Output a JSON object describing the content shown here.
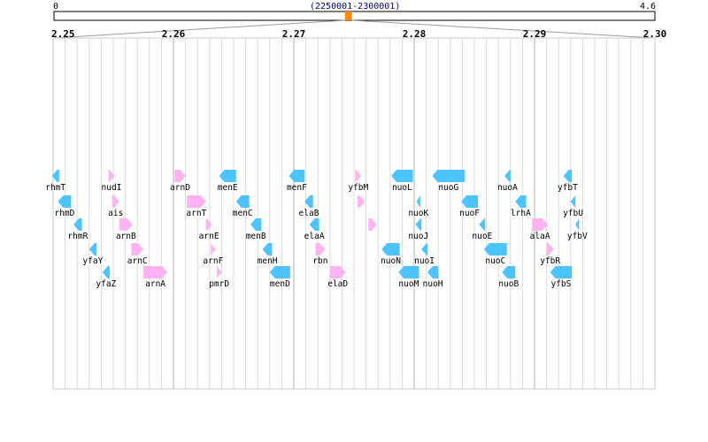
{
  "overview": {
    "start_label": "0",
    "end_label": "4.6",
    "range_label": "(2250001-2300001)",
    "marker_fraction": 0.49,
    "accent_color": "#ff8c00",
    "range_color": "#000099"
  },
  "detail_ticks": [
    {
      "label": "2.25",
      "value": 2.25
    },
    {
      "label": "2.26",
      "value": 2.26
    },
    {
      "label": "2.27",
      "value": 2.27
    },
    {
      "label": "2.28",
      "value": 2.28
    },
    {
      "label": "2.29",
      "value": 2.29
    },
    {
      "label": "2.30",
      "value": 2.3
    }
  ],
  "colors": {
    "forward_strand": "#ffb3f2",
    "reverse_strand": "#4dc3ff",
    "grid_major": "#b0b0b0",
    "grid_minor": "#dcdcdc"
  },
  "genes": [
    {
      "name": "rhmT",
      "start": 2.2499,
      "end": 2.2505,
      "strand": "-",
      "row": 0
    },
    {
      "name": "rhmD",
      "start": 2.2504,
      "end": 2.2515,
      "strand": "-",
      "row": 1
    },
    {
      "name": "rhmR",
      "start": 2.2517,
      "end": 2.2524,
      "strand": "-",
      "row": 2
    },
    {
      "name": "yfaY",
      "start": 2.253,
      "end": 2.2536,
      "strand": "-",
      "row": 3
    },
    {
      "name": "yfaZ",
      "start": 2.2541,
      "end": 2.2547,
      "strand": "-",
      "row": 4
    },
    {
      "name": "nudI",
      "start": 2.2546,
      "end": 2.2551,
      "strand": "+",
      "row": 0
    },
    {
      "name": "ais",
      "start": 2.2549,
      "end": 2.2555,
      "strand": "+",
      "row": 1
    },
    {
      "name": "arnB",
      "start": 2.2555,
      "end": 2.2566,
      "strand": "+",
      "row": 2
    },
    {
      "name": "arnC",
      "start": 2.2565,
      "end": 2.2575,
      "strand": "+",
      "row": 3
    },
    {
      "name": "arnA",
      "start": 2.2575,
      "end": 2.2595,
      "strand": "+",
      "row": 4
    },
    {
      "name": "arnD",
      "start": 2.2601,
      "end": 2.261,
      "strand": "+",
      "row": 0
    },
    {
      "name": "arnT",
      "start": 2.2611,
      "end": 2.2627,
      "strand": "+",
      "row": 1
    },
    {
      "name": "arnE",
      "start": 2.2627,
      "end": 2.2632,
      "strand": "+",
      "row": 2
    },
    {
      "name": "arnF",
      "start": 2.2631,
      "end": 2.2635,
      "strand": "+",
      "row": 3
    },
    {
      "name": "pmrD",
      "start": 2.2636,
      "end": 2.264,
      "strand": "+",
      "row": 4
    },
    {
      "name": "menE",
      "start": 2.2638,
      "end": 2.2652,
      "strand": "-",
      "row": 0
    },
    {
      "name": "menC",
      "start": 2.2652,
      "end": 2.2663,
      "strand": "-",
      "row": 1
    },
    {
      "name": "menB",
      "start": 2.2664,
      "end": 2.2673,
      "strand": "-",
      "row": 2
    },
    {
      "name": "menH",
      "start": 2.2674,
      "end": 2.2682,
      "strand": "-",
      "row": 3
    },
    {
      "name": "menD",
      "start": 2.268,
      "end": 2.2697,
      "strand": "-",
      "row": 4
    },
    {
      "name": "menF",
      "start": 2.2696,
      "end": 2.2709,
      "strand": "-",
      "row": 0
    },
    {
      "name": "elaB",
      "start": 2.2709,
      "end": 2.2716,
      "strand": "-",
      "row": 1
    },
    {
      "name": "elaA",
      "start": 2.2713,
      "end": 2.2721,
      "strand": "-",
      "row": 2
    },
    {
      "name": "rbn",
      "start": 2.2718,
      "end": 2.2726,
      "strand": "+",
      "row": 3
    },
    {
      "name": "elaD",
      "start": 2.273,
      "end": 2.2743,
      "strand": "+",
      "row": 4
    },
    {
      "name": "yfbM",
      "start": 2.2751,
      "end": 2.2756,
      "strand": "+",
      "row": 0
    },
    {
      "name": "",
      "start": 2.2753,
      "end": 2.2759,
      "strand": "+",
      "row": 1
    },
    {
      "name": "",
      "start": 2.2762,
      "end": 2.2769,
      "strand": "+",
      "row": 2
    },
    {
      "name": "nuoN",
      "start": 2.2773,
      "end": 2.2788,
      "strand": "-",
      "row": 3
    },
    {
      "name": "nuoM",
      "start": 2.2787,
      "end": 2.2804,
      "strand": "-",
      "row": 4
    },
    {
      "name": "nuoL",
      "start": 2.2781,
      "end": 2.2799,
      "strand": "-",
      "row": 0
    },
    {
      "name": "nuoK",
      "start": 2.2802,
      "end": 2.2805,
      "strand": "-",
      "row": 1
    },
    {
      "name": "nuoJ",
      "start": 2.2801,
      "end": 2.2806,
      "strand": "-",
      "row": 2
    },
    {
      "name": "nuoI",
      "start": 2.2806,
      "end": 2.2811,
      "strand": "-",
      "row": 3
    },
    {
      "name": "nuoH",
      "start": 2.2811,
      "end": 2.282,
      "strand": "-",
      "row": 4
    },
    {
      "name": "nuoG",
      "start": 2.2815,
      "end": 2.2842,
      "strand": "-",
      "row": 0
    },
    {
      "name": "nuoF",
      "start": 2.2839,
      "end": 2.2853,
      "strand": "-",
      "row": 1
    },
    {
      "name": "nuoE",
      "start": 2.2854,
      "end": 2.2859,
      "strand": "-",
      "row": 2
    },
    {
      "name": "nuoC",
      "start": 2.2858,
      "end": 2.2877,
      "strand": "-",
      "row": 3
    },
    {
      "name": "nuoB",
      "start": 2.2873,
      "end": 2.2884,
      "strand": "-",
      "row": 4
    },
    {
      "name": "nuoA",
      "start": 2.2875,
      "end": 2.288,
      "strand": "-",
      "row": 0
    },
    {
      "name": "lrhA",
      "start": 2.2884,
      "end": 2.2893,
      "strand": "-",
      "row": 1
    },
    {
      "name": "alaA",
      "start": 2.2898,
      "end": 2.2911,
      "strand": "+",
      "row": 2
    },
    {
      "name": "yfbR",
      "start": 2.291,
      "end": 2.2916,
      "strand": "+",
      "row": 3
    },
    {
      "name": "yfbS",
      "start": 2.2913,
      "end": 2.2931,
      "strand": "-",
      "row": 4
    },
    {
      "name": "yfbT",
      "start": 2.2924,
      "end": 2.2931,
      "strand": "-",
      "row": 0
    },
    {
      "name": "yfbU",
      "start": 2.293,
      "end": 2.2934,
      "strand": "-",
      "row": 1
    },
    {
      "name": "yfbV",
      "start": 2.2934,
      "end": 2.2937,
      "strand": "-",
      "row": 2
    }
  ]
}
